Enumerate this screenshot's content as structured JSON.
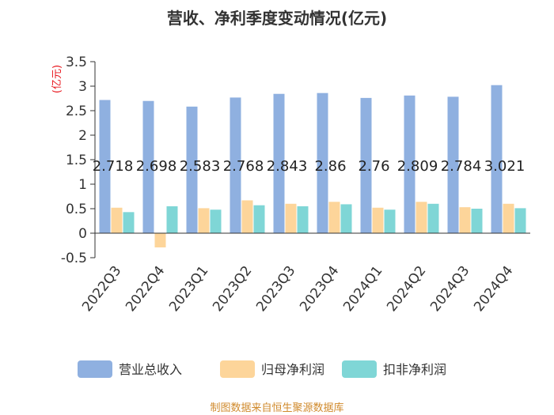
{
  "chart_data": {
    "type": "bar",
    "title": "营收、净利季度变动情况(亿元)",
    "unit_label": "(亿元)",
    "categories": [
      "2022Q3",
      "2022Q4",
      "2023Q1",
      "2023Q2",
      "2023Q3",
      "2023Q4",
      "2024Q1",
      "2024Q2",
      "2024Q3",
      "2024Q4"
    ],
    "series": [
      {
        "name": "营业总收入",
        "color": "#8fb0e0",
        "values": [
          2.718,
          2.698,
          2.583,
          2.768,
          2.843,
          2.86,
          2.76,
          2.809,
          2.784,
          3.021
        ]
      },
      {
        "name": "归母净利润",
        "color": "#fdd59a",
        "values": [
          0.52,
          -0.29,
          0.51,
          0.67,
          0.6,
          0.64,
          0.52,
          0.64,
          0.53,
          0.6
        ]
      },
      {
        "name": "扣非净利润",
        "color": "#7fd6d6",
        "values": [
          0.43,
          0.55,
          0.48,
          0.57,
          0.55,
          0.59,
          0.48,
          0.6,
          0.5,
          0.51
        ]
      }
    ],
    "data_labels": [
      "2.718",
      "2.698",
      "2.583",
      "2.768",
      "2.843",
      "2.86",
      "2.76",
      "2.809",
      "2.784",
      "3.021"
    ],
    "yticks": [
      "3.5",
      "3",
      "2.5",
      "2",
      "1.5",
      "1",
      "0.5",
      "0",
      "-0.5"
    ],
    "ylim": [
      -0.5,
      3.5
    ],
    "grid": false,
    "legend_position": "bottom"
  },
  "source": "制图数据来自恒生聚源数据库"
}
